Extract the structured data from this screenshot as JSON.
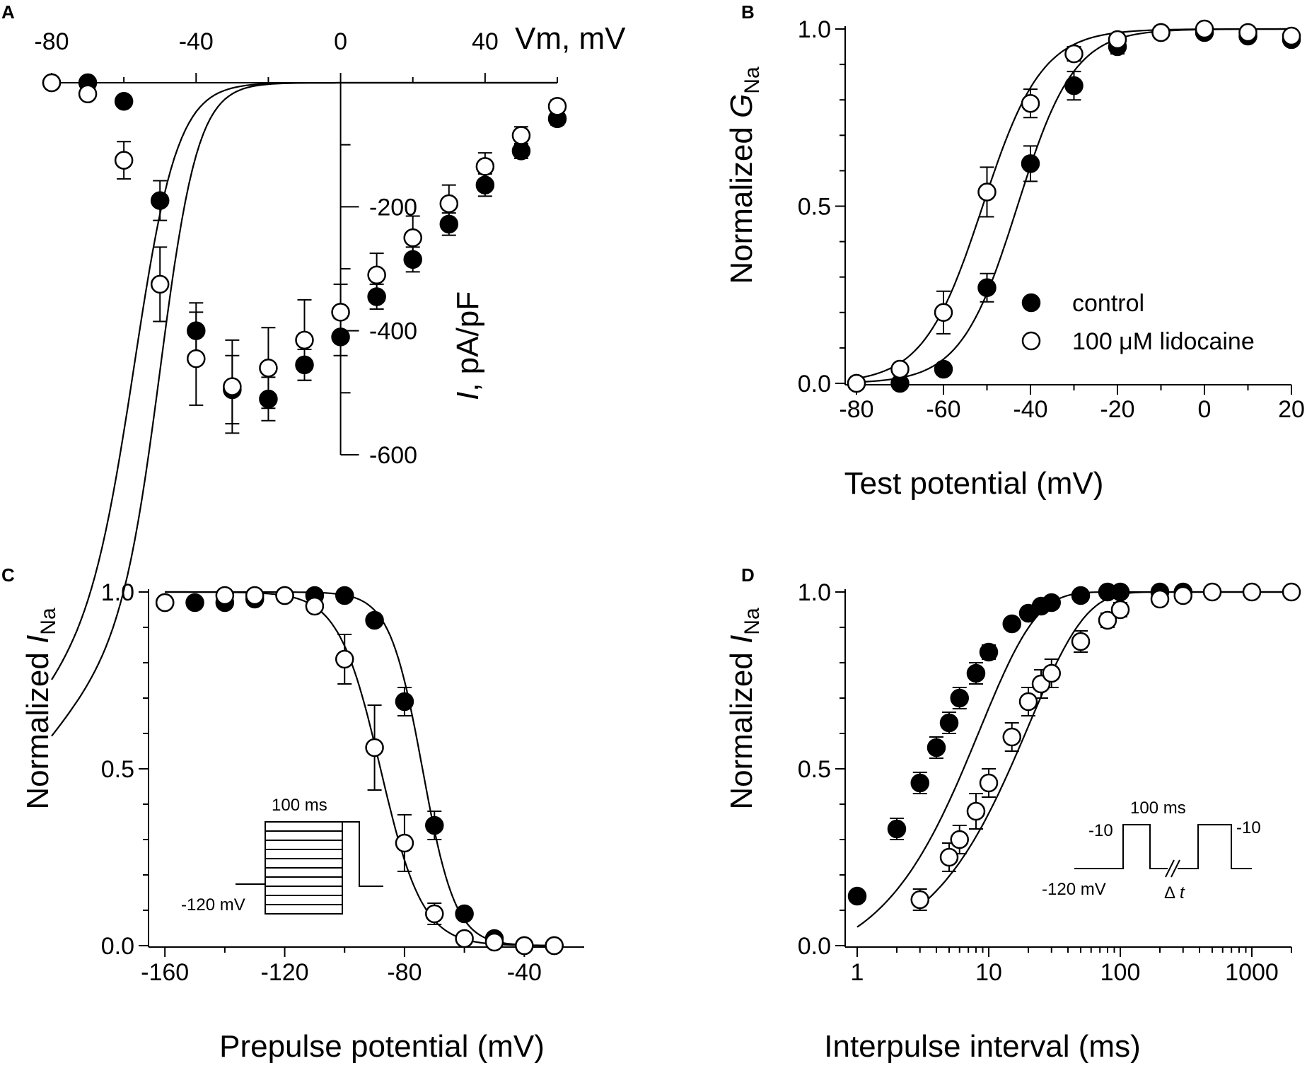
{
  "figure": {
    "panels": [
      "A",
      "B",
      "C",
      "D"
    ]
  },
  "legend": {
    "control": "control",
    "lidocaine": "100 μM lidocaine"
  },
  "insets": {
    "c": {
      "duration": "100 ms",
      "holding": "-120 mV"
    },
    "d": {
      "duration": "100 ms",
      "level_left": "-10",
      "level_right": "-10",
      "holding": "-120 mV",
      "delta": "Δ",
      "t": "t"
    }
  },
  "chart_data": [
    {
      "panel": "A",
      "type": "scatter",
      "title": "",
      "xlabel": "Vm, mV",
      "ylabel_italic": "I",
      "ylabel_rest": ", pA/pF",
      "xlim": [
        -80,
        60
      ],
      "ylim": [
        -600,
        0
      ],
      "x_ticks": [
        -80,
        -40,
        0,
        40
      ],
      "y_ticks": [
        -200,
        -400,
        -600
      ],
      "series": [
        {
          "name": "control",
          "marker": "filled",
          "x": [
            -80,
            -70,
            -60,
            -50,
            -40,
            -30,
            -20,
            -10,
            0,
            10,
            20,
            30,
            40,
            50,
            60
          ],
          "y": [
            0,
            0,
            -30,
            -190,
            -400,
            -495,
            -510,
            -455,
            -410,
            -345,
            -285,
            -228,
            -165,
            -110,
            -58
          ],
          "err": [
            0,
            0,
            0,
            32,
            45,
            55,
            35,
            25,
            30,
            20,
            20,
            18,
            18,
            12,
            10
          ]
        },
        {
          "name": "100 μM lidocaine",
          "marker": "open",
          "x": [
            -80,
            -70,
            -60,
            -50,
            -40,
            -30,
            -20,
            -10,
            0,
            10,
            20,
            30,
            40,
            50,
            60
          ],
          "y": [
            0,
            -18,
            -125,
            -325,
            -445,
            -490,
            -460,
            -415,
            -370,
            -310,
            -250,
            -195,
            -135,
            -85,
            -38
          ],
          "err": [
            0,
            0,
            30,
            60,
            75,
            75,
            65,
            65,
            45,
            35,
            35,
            30,
            22,
            14,
            10
          ]
        }
      ]
    },
    {
      "panel": "B",
      "type": "scatter",
      "title": "",
      "xlabel": "Test potential (mV)",
      "ylabel_prefix": "Normalized ",
      "ylabel_italic": "G",
      "ylabel_sub": "Na",
      "xlim": [
        -80,
        20
      ],
      "ylim": [
        0,
        1
      ],
      "x_ticks": [
        -80,
        -60,
        -40,
        -20,
        0,
        20
      ],
      "y_ticks": [
        0.0,
        0.5,
        1.0
      ],
      "y_tick_labels": [
        "0.0",
        "0.5",
        "1.0"
      ],
      "series": [
        {
          "name": "control",
          "marker": "filled",
          "x": [
            -80,
            -70,
            -60,
            -50,
            -40,
            -30,
            -20,
            -10,
            0,
            10,
            20
          ],
          "y": [
            0.0,
            0.0,
            0.04,
            0.27,
            0.62,
            0.84,
            0.95,
            0.99,
            0.99,
            0.98,
            0.97
          ],
          "err": [
            0,
            0,
            0,
            0.04,
            0.05,
            0.04,
            0.02,
            0,
            0,
            0,
            0
          ]
        },
        {
          "name": "100 μM lidocaine",
          "marker": "open",
          "x": [
            -80,
            -70,
            -60,
            -50,
            -40,
            -30,
            -20,
            -10,
            0,
            10,
            20
          ],
          "y": [
            0.0,
            0.04,
            0.2,
            0.54,
            0.79,
            0.93,
            0.97,
            0.99,
            1.0,
            0.99,
            0.98
          ],
          "err": [
            0,
            0,
            0.06,
            0.07,
            0.04,
            0.02,
            0,
            0,
            0,
            0,
            0
          ]
        }
      ]
    },
    {
      "panel": "C",
      "type": "scatter",
      "title": "",
      "xlabel": "Prepulse potential (mV)",
      "ylabel_prefix": "Normalized ",
      "ylabel_italic": "I",
      "ylabel_sub": "Na",
      "xlim": [
        -165,
        -20
      ],
      "ylim": [
        0,
        1
      ],
      "x_ticks": [
        -160,
        -120,
        -80,
        -40
      ],
      "y_ticks": [
        0.0,
        0.5,
        1.0
      ],
      "y_tick_labels": [
        "0.0",
        "0.5",
        "1.0"
      ],
      "series": [
        {
          "name": "control",
          "marker": "filled",
          "x": [
            -160,
            -150,
            -140,
            -130,
            -120,
            -110,
            -100,
            -90,
            -80,
            -70,
            -60,
            -50,
            -40,
            -30
          ],
          "y": [
            0.97,
            0.97,
            0.97,
            0.98,
            0.99,
            0.99,
            0.99,
            0.92,
            0.69,
            0.34,
            0.09,
            0.02,
            0.0,
            0.0
          ],
          "err": [
            0,
            0,
            0,
            0,
            0,
            0,
            0,
            0,
            0.04,
            0.04,
            0,
            0,
            0,
            0
          ]
        },
        {
          "name": "100 μM lidocaine",
          "marker": "open",
          "x": [
            -160,
            -140,
            -130,
            -120,
            -110,
            -100,
            -90,
            -80,
            -70,
            -60,
            -50,
            -40,
            -30
          ],
          "y": [
            0.97,
            0.99,
            0.99,
            0.99,
            0.96,
            0.81,
            0.56,
            0.29,
            0.09,
            0.02,
            0.01,
            0.0,
            0.0
          ],
          "err": [
            0,
            0,
            0,
            0,
            0,
            0.07,
            0.12,
            0.08,
            0.03,
            0,
            0,
            0,
            0
          ]
        }
      ]
    },
    {
      "panel": "D",
      "type": "scatter",
      "title": "",
      "xlabel": "Interpulse interval (ms)",
      "ylabel_prefix": "Normalized ",
      "ylabel_italic": "I",
      "ylabel_sub": "Na",
      "x_scale": "log",
      "xlim": [
        1,
        2000
      ],
      "ylim": [
        0,
        1
      ],
      "x_ticks": [
        1,
        10,
        100,
        1000
      ],
      "y_ticks": [
        0.0,
        0.5,
        1.0
      ],
      "y_tick_labels": [
        "0.0",
        "0.5",
        "1.0"
      ],
      "series": [
        {
          "name": "control",
          "marker": "filled",
          "x": [
            1,
            2,
            3,
            4,
            5,
            6,
            8,
            10,
            15,
            20,
            25,
            30,
            50,
            80,
            100,
            200,
            300
          ],
          "y": [
            0.14,
            0.33,
            0.46,
            0.56,
            0.63,
            0.7,
            0.77,
            0.83,
            0.91,
            0.94,
            0.96,
            0.97,
            0.99,
            1.0,
            1.0,
            1.0,
            1.0
          ],
          "err": [
            0,
            0.03,
            0.03,
            0.03,
            0.03,
            0.03,
            0.03,
            0.02,
            0.01,
            0.01,
            0,
            0,
            0,
            0,
            0,
            0,
            0
          ]
        },
        {
          "name": "100 μM lidocaine",
          "marker": "open",
          "x": [
            3,
            5,
            6,
            8,
            10,
            15,
            20,
            25,
            30,
            50,
            80,
            100,
            200,
            300,
            500,
            1000,
            2000
          ],
          "y": [
            0.13,
            0.25,
            0.3,
            0.38,
            0.46,
            0.59,
            0.69,
            0.74,
            0.77,
            0.86,
            0.92,
            0.95,
            0.98,
            0.99,
            1.0,
            1.0,
            1.0
          ],
          "err": [
            0.03,
            0.04,
            0.04,
            0.05,
            0.04,
            0.04,
            0.04,
            0.04,
            0.04,
            0.03,
            0.02,
            0.02,
            0,
            0,
            0,
            0,
            0
          ]
        }
      ]
    }
  ]
}
